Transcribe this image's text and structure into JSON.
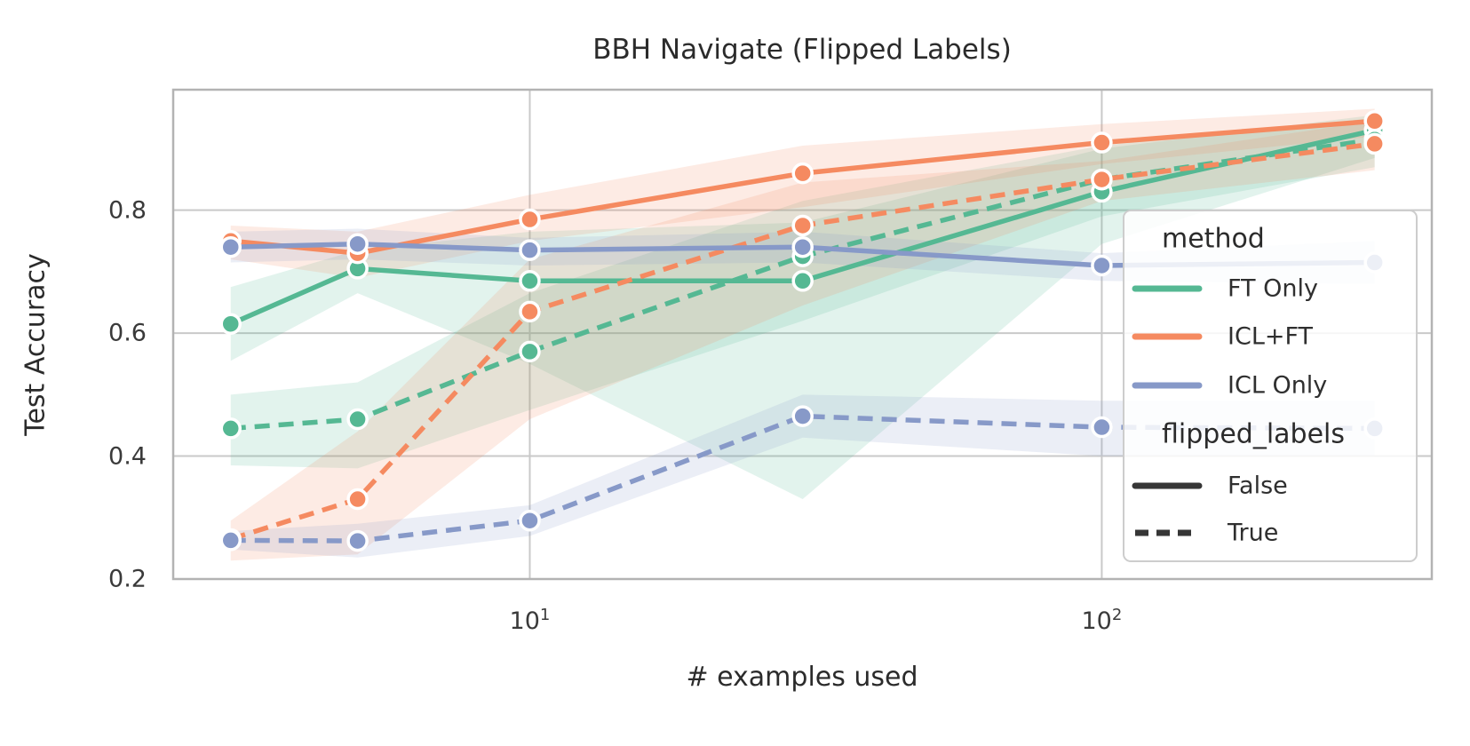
{
  "figure": {
    "title": "BBH Navigate (Flipped Labels)",
    "x_label": "# examples used",
    "y_label": "Test Accuracy",
    "legend": {
      "method_title": "method",
      "flipped_title": "flipped_labels",
      "methods": [
        {
          "label": "FT Only",
          "color": "#55b893"
        },
        {
          "label": "ICL+FT",
          "color": "#f58a60"
        },
        {
          "label": "ICL Only",
          "color": "#8799c8"
        }
      ],
      "styles": [
        {
          "label": "False",
          "dash": false
        },
        {
          "label": "True",
          "dash": true
        }
      ],
      "swatch_dark_color": "#363636"
    },
    "colors": {
      "grid": "#c9c9c9",
      "spine": "#b3b3b3",
      "text": "#2e2e2e"
    }
  },
  "chart_data": {
    "type": "line",
    "title": "BBH Navigate (Flipped Labels)",
    "xlabel": "# examples used",
    "ylabel": "Test Accuracy",
    "xscale": "log",
    "grid": true,
    "legend_position": "right",
    "x": [
      3,
      5,
      10,
      30,
      100,
      300
    ],
    "xticks": [
      10,
      100
    ],
    "yticks": [
      0.2,
      0.4,
      0.6,
      0.8
    ],
    "xlim": [
      2.38,
      377.6
    ],
    "ylim": [
      0.2,
      0.996
    ],
    "series": [
      {
        "name": "FT Only / not flipped",
        "method": "FT Only",
        "flipped_labels": "False",
        "color": "#55b893",
        "dash": false,
        "values": [
          0.615,
          0.705,
          0.685,
          0.685,
          0.83,
          0.93
        ],
        "band_low": [
          0.555,
          0.665,
          0.55,
          0.33,
          0.745,
          0.885
        ],
        "band_high": [
          0.675,
          0.735,
          0.765,
          0.78,
          0.9,
          0.955
        ]
      },
      {
        "name": "FT Only / flipped",
        "method": "FT Only",
        "flipped_labels": "True",
        "color": "#55b893",
        "dash": true,
        "values": [
          0.445,
          0.46,
          0.57,
          0.725,
          0.85,
          0.915
        ],
        "band_low": [
          0.385,
          0.38,
          0.475,
          0.62,
          0.79,
          0.87
        ],
        "band_high": [
          0.5,
          0.52,
          0.665,
          0.815,
          0.905,
          0.95
        ]
      },
      {
        "name": "ICL+FT / not flipped",
        "method": "ICL+FT",
        "flipped_labels": "False",
        "color": "#f58a60",
        "dash": false,
        "values": [
          0.75,
          0.73,
          0.785,
          0.86,
          0.91,
          0.945
        ],
        "band_low": [
          0.72,
          0.69,
          0.75,
          0.805,
          0.875,
          0.92
        ],
        "band_high": [
          0.775,
          0.765,
          0.825,
          0.905,
          0.94,
          0.965
        ]
      },
      {
        "name": "ICL+FT / flipped",
        "method": "ICL+FT",
        "flipped_labels": "True",
        "color": "#f58a60",
        "dash": true,
        "values": [
          0.265,
          0.33,
          0.635,
          0.775,
          0.85,
          0.908
        ],
        "band_low": [
          0.23,
          0.24,
          0.46,
          0.645,
          0.815,
          0.865
        ],
        "band_high": [
          0.295,
          0.44,
          0.72,
          0.845,
          0.88,
          0.945
        ]
      },
      {
        "name": "ICL Only / not flipped",
        "method": "ICL Only",
        "flipped_labels": "False",
        "color": "#8799c8",
        "dash": false,
        "values": [
          0.74,
          0.745,
          0.735,
          0.74,
          0.71,
          0.715
        ],
        "band_low": [
          0.715,
          0.72,
          0.71,
          0.715,
          0.685,
          0.68
        ],
        "band_high": [
          0.765,
          0.77,
          0.755,
          0.765,
          0.73,
          0.75
        ]
      },
      {
        "name": "ICL Only / flipped",
        "method": "ICL Only",
        "flipped_labels": "True",
        "color": "#8799c8",
        "dash": true,
        "values": [
          0.263,
          0.262,
          0.295,
          0.465,
          0.447,
          0.445
        ],
        "band_low": [
          0.248,
          0.235,
          0.27,
          0.43,
          0.4,
          0.4
        ],
        "band_high": [
          0.278,
          0.29,
          0.32,
          0.5,
          0.49,
          0.49
        ]
      }
    ]
  }
}
